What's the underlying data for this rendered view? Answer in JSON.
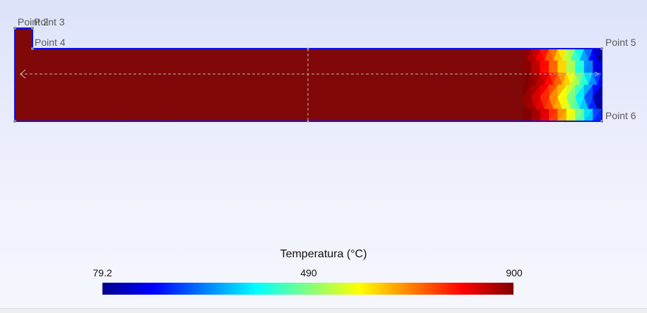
{
  "points": [
    {
      "id": "p2",
      "label": "Point 2"
    },
    {
      "id": "p3",
      "label": "Point 3"
    },
    {
      "id": "p4",
      "label": "Point 4"
    },
    {
      "id": "p5",
      "label": "Point 5"
    },
    {
      "id": "p6",
      "label": "Point 6"
    }
  ],
  "colorbar": {
    "title": "Temperatura (°C)",
    "min_label": "79.2",
    "mid_label": "490",
    "max_label": "900",
    "colormap": "jet"
  },
  "colors": {
    "body_fill": "#800808",
    "outline": "#1010e0",
    "axis_dash": "#b0b0b0"
  }
}
